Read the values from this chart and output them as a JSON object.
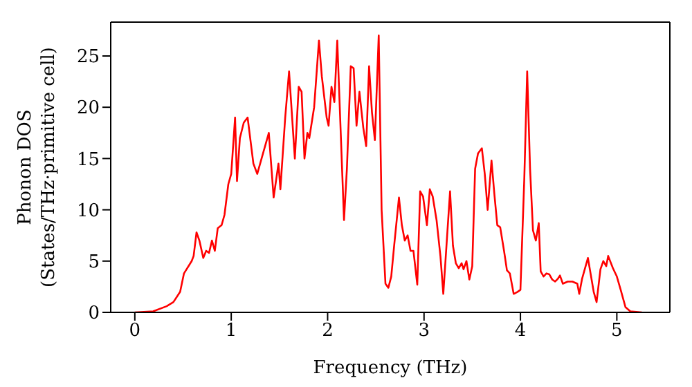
{
  "chart_data": {
    "type": "line",
    "xlabel": "Frequency (THz)",
    "ylabel": "Phonon DOS\n(States/THz·primitive cell)",
    "xlim": [
      -0.25,
      5.55
    ],
    "xticks": [
      0,
      1,
      2,
      3,
      4,
      5
    ],
    "ylim": [
      0,
      28.3
    ],
    "yticks": [
      0,
      5,
      10,
      15,
      20,
      25
    ],
    "grid": false,
    "legend": false,
    "marker": "none",
    "line_style": "solid",
    "x": [
      0,
      0.19,
      0.33,
      0.4,
      0.47,
      0.51,
      0.59,
      0.61,
      0.64,
      0.67,
      0.71,
      0.74,
      0.77,
      0.8,
      0.83,
      0.86,
      0.9,
      0.93,
      0.97,
      1.0,
      1.04,
      1.06,
      1.09,
      1.13,
      1.17,
      1.23,
      1.27,
      1.33,
      1.39,
      1.44,
      1.49,
      1.51,
      1.56,
      1.6,
      1.66,
      1.7,
      1.73,
      1.76,
      1.79,
      1.81,
      1.86,
      1.91,
      1.94,
      1.99,
      2.01,
      2.04,
      2.07,
      2.1,
      2.13,
      2.17,
      2.2,
      2.24,
      2.27,
      2.3,
      2.33,
      2.37,
      2.4,
      2.43,
      2.46,
      2.49,
      2.53,
      2.56,
      2.6,
      2.63,
      2.66,
      2.69,
      2.74,
      2.77,
      2.8,
      2.83,
      2.86,
      2.89,
      2.93,
      2.96,
      2.99,
      3.03,
      3.06,
      3.09,
      3.13,
      3.17,
      3.2,
      3.27,
      3.3,
      3.33,
      3.36,
      3.39,
      3.41,
      3.44,
      3.47,
      3.5,
      3.53,
      3.56,
      3.6,
      3.63,
      3.66,
      3.7,
      3.73,
      3.76,
      3.79,
      3.83,
      3.86,
      3.89,
      3.93,
      3.97,
      4.0,
      4.04,
      4.07,
      4.1,
      4.13,
      4.16,
      4.19,
      4.21,
      4.24,
      4.27,
      4.3,
      4.33,
      4.36,
      4.39,
      4.41,
      4.44,
      4.49,
      4.54,
      4.59,
      4.61,
      4.64,
      4.7,
      4.76,
      4.79,
      4.83,
      4.86,
      4.89,
      4.91,
      4.96,
      5.0,
      5.04,
      5.09,
      5.14,
      5.26
    ],
    "series": [
      {
        "color": "#ff0000",
        "values": [
          0,
          0.1,
          0.6,
          1.0,
          2.0,
          3.8,
          5.0,
          5.5,
          7.8,
          7.0,
          5.3,
          6.0,
          5.8,
          7.0,
          6.0,
          8.2,
          8.5,
          9.5,
          12.5,
          13.5,
          19,
          12.8,
          17,
          18.5,
          19,
          14.5,
          13.5,
          15.5,
          17.5,
          11.2,
          14.5,
          12,
          19,
          23.5,
          15,
          22,
          21.5,
          15,
          17.5,
          17,
          20,
          26.5,
          23,
          19,
          18.2,
          22,
          20.5,
          26.5,
          19,
          9,
          14,
          24,
          23.8,
          18.2,
          21.5,
          18,
          16.2,
          24,
          19.5,
          16.8,
          27,
          10,
          2.8,
          2.4,
          3.5,
          6.5,
          11.2,
          8.5,
          7,
          7.5,
          6,
          6,
          2.7,
          11.8,
          11.3,
          8.5,
          12.0,
          11.3,
          9,
          5.5,
          1.8,
          11.8,
          6.5,
          4.8,
          4.3,
          4.8,
          4.2,
          5,
          3.2,
          4.5,
          14,
          15.5,
          16,
          13.5,
          10,
          14.8,
          11.5,
          8.5,
          8.3,
          6,
          4.1,
          3.8,
          1.8,
          2,
          2.2,
          13,
          23.5,
          14,
          8,
          7,
          8.7,
          4,
          3.5,
          3.8,
          3.7,
          3.2,
          3.0,
          3.3,
          3.6,
          2.8,
          3.0,
          3.0,
          2.8,
          1.8,
          3.3,
          5.3,
          2.0,
          1.0,
          4.2,
          5.0,
          4.5,
          5.5,
          4.3,
          3.5,
          2.2,
          0.5,
          0.1,
          0
        ]
      }
    ]
  }
}
